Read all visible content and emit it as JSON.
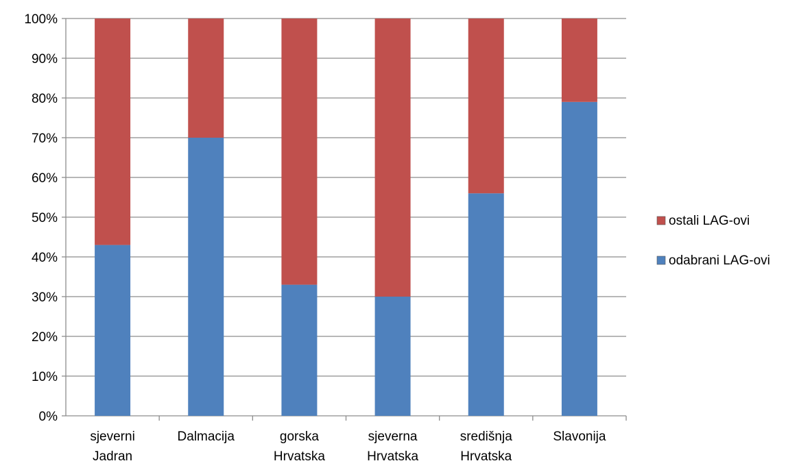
{
  "chart_data": {
    "type": "bar",
    "stacked": true,
    "percent_stacked": true,
    "categories": [
      [
        "sjeverni",
        "Jadran"
      ],
      [
        "Dalmacija"
      ],
      [
        "gorska",
        "Hrvatska"
      ],
      [
        "sjeverna",
        "Hrvatska"
      ],
      [
        "središnja",
        "Hrvatska"
      ],
      [
        "Slavonija"
      ]
    ],
    "series": [
      {
        "name": "odabrani LAG-ovi",
        "color": "#4f81bd",
        "values": [
          43,
          70,
          33,
          30,
          56,
          79
        ]
      },
      {
        "name": "ostali LAG-ovi",
        "color": "#c0504d",
        "values": [
          57,
          30,
          67,
          70,
          44,
          21
        ]
      }
    ],
    "legend_order": [
      "ostali LAG-ovi",
      "odabrani LAG-ovi"
    ],
    "legend_position": "right",
    "ylim": [
      0,
      100
    ],
    "yticks": [
      "0%",
      "10%",
      "20%",
      "30%",
      "40%",
      "50%",
      "60%",
      "70%",
      "80%",
      "90%",
      "100%"
    ],
    "grid": true,
    "title": "",
    "xlabel": "",
    "ylabel": ""
  }
}
